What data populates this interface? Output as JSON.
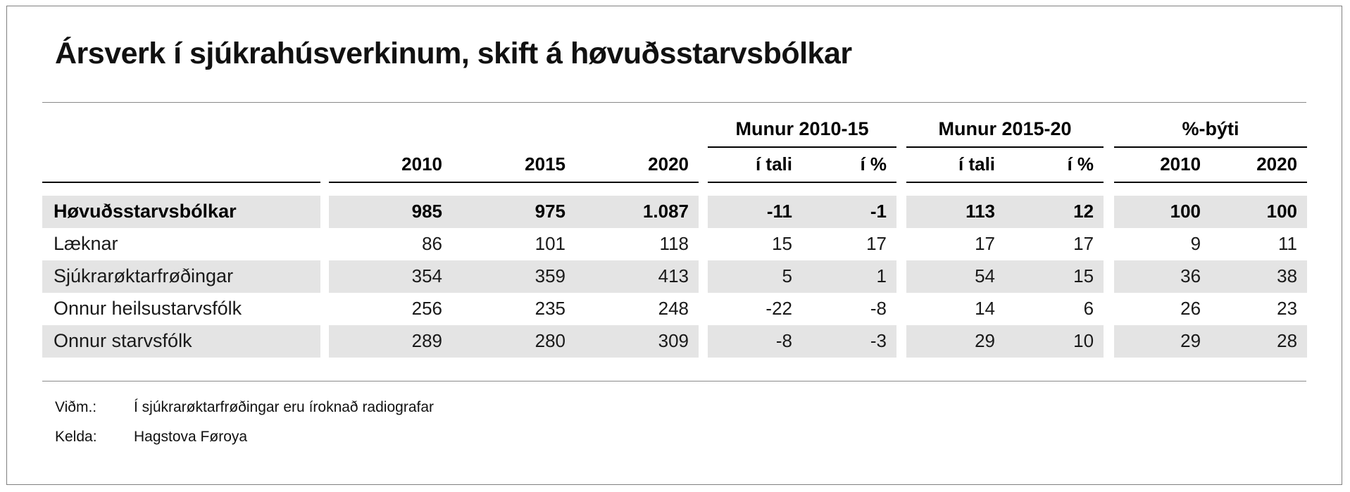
{
  "page": {
    "title": "Ársverk í sjúkrahúsverkinum, skift á høvuðsstarvsbólkar"
  },
  "table": {
    "group_headers": [
      {
        "label": "Munur 2010-15"
      },
      {
        "label": "Munur 2015-20"
      },
      {
        "label": "%-býti"
      }
    ],
    "col_headers": {
      "years": [
        "2010",
        "2015",
        "2020"
      ],
      "munur1": [
        "í tali",
        "í %"
      ],
      "munur2": [
        "í tali",
        "í %"
      ],
      "byti": [
        "2010",
        "2020"
      ]
    },
    "rows": [
      {
        "label": "Høvuðsstarvsbólkar",
        "values": [
          "985",
          "975",
          "1.087",
          "-11",
          "-1",
          "113",
          "12",
          "100",
          "100"
        ]
      },
      {
        "label": "Læknar",
        "values": [
          "86",
          "101",
          "118",
          "15",
          "17",
          "17",
          "17",
          "9",
          "11"
        ]
      },
      {
        "label": "Sjúkrarøktarfrøðingar",
        "values": [
          "354",
          "359",
          "413",
          "5",
          "1",
          "54",
          "15",
          "36",
          "38"
        ]
      },
      {
        "label": "Onnur heilsustarvsfólk",
        "values": [
          "256",
          "235",
          "248",
          "-22",
          "-8",
          "14",
          "6",
          "26",
          "23"
        ]
      },
      {
        "label": "Onnur starvsfólk",
        "values": [
          "289",
          "280",
          "309",
          "-8",
          "-3",
          "29",
          "10",
          "29",
          "28"
        ]
      }
    ]
  },
  "notes": [
    {
      "label": "Viðm.:",
      "text": "Í sjúkrarøktarfrøðingar eru íroknað radiografar"
    },
    {
      "label": "Kelda:",
      "text": "Hagstova Føroya"
    }
  ],
  "colors": {
    "stripe": "#e4e4e4",
    "rule_gray": "#8a8a8a",
    "rule_black": "#000000",
    "frame": "#808080",
    "text": "#1a1a1a"
  }
}
